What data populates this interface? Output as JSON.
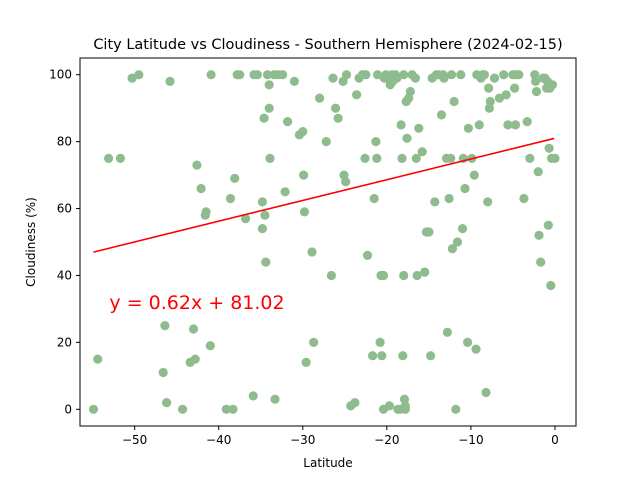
{
  "chart_data": {
    "type": "scatter",
    "title": "City Latitude vs Cloudiness - Southern Hemisphere (2024-02-15)",
    "xlabel": "Latitude",
    "ylabel": "Cloudiness (%)",
    "xlim": [
      -56.5,
      2.5
    ],
    "ylim": [
      -5,
      105
    ],
    "xticks": [
      -50,
      -40,
      -30,
      -20,
      -10,
      0
    ],
    "yticks": [
      0,
      20,
      40,
      60,
      80,
      100
    ],
    "grid": false,
    "marker_color": "#8fbc8f",
    "regression": {
      "slope": 0.62,
      "intercept": 81.02,
      "x_range": [
        -54.9,
        -0.1
      ],
      "color": "#ff0000",
      "equation": "y = 0.62x + 81.02",
      "equation_at": [
        -53,
        30
      ]
    },
    "points": [
      [
        -54.9,
        0
      ],
      [
        -54.4,
        15
      ],
      [
        -53.1,
        75
      ],
      [
        -51.7,
        75
      ],
      [
        -50.3,
        99
      ],
      [
        -49.5,
        100
      ],
      [
        -46.6,
        11
      ],
      [
        -46.4,
        25
      ],
      [
        -46.2,
        2
      ],
      [
        -45.8,
        98
      ],
      [
        -44.3,
        0
      ],
      [
        -43.4,
        14
      ],
      [
        -43,
        24
      ],
      [
        -42.8,
        15
      ],
      [
        -42.6,
        73
      ],
      [
        -42.1,
        66
      ],
      [
        -41.6,
        58
      ],
      [
        -41.5,
        59
      ],
      [
        -41,
        19
      ],
      [
        -40.9,
        100
      ],
      [
        -39.1,
        0
      ],
      [
        -38.6,
        63
      ],
      [
        -38.3,
        0
      ],
      [
        -38.1,
        69
      ],
      [
        -37.8,
        100
      ],
      [
        -37.5,
        100
      ],
      [
        -36.8,
        57
      ],
      [
        -35.9,
        4
      ],
      [
        -35.8,
        100
      ],
      [
        -35.4,
        100
      ],
      [
        -34.8,
        62
      ],
      [
        -34.8,
        54
      ],
      [
        -34.6,
        87
      ],
      [
        -34.5,
        58
      ],
      [
        -34.4,
        44
      ],
      [
        -34.2,
        100
      ],
      [
        -34,
        97
      ],
      [
        -34,
        90
      ],
      [
        -33.9,
        75
      ],
      [
        -33.4,
        100
      ],
      [
        -33.3,
        3
      ],
      [
        -32.9,
        100
      ],
      [
        -32.4,
        100
      ],
      [
        -32.1,
        65
      ],
      [
        -31.8,
        86
      ],
      [
        -31,
        98
      ],
      [
        -30.4,
        82
      ],
      [
        -30,
        83
      ],
      [
        -29.9,
        70
      ],
      [
        -29.8,
        59
      ],
      [
        -29.6,
        14
      ],
      [
        -28.9,
        47
      ],
      [
        -28.7,
        20
      ],
      [
        -28,
        93
      ],
      [
        -27.2,
        80
      ],
      [
        -26.6,
        40
      ],
      [
        -26.4,
        99
      ],
      [
        -26.1,
        90
      ],
      [
        -25.8,
        87
      ],
      [
        -25.2,
        98
      ],
      [
        -25.1,
        70
      ],
      [
        -24.9,
        68
      ],
      [
        -24.8,
        100
      ],
      [
        -24.3,
        1
      ],
      [
        -23.8,
        2
      ],
      [
        -23.6,
        94
      ],
      [
        -23.3,
        99
      ],
      [
        -22.9,
        100
      ],
      [
        -22.6,
        75
      ],
      [
        -22.5,
        100
      ],
      [
        -22.3,
        46
      ],
      [
        -21.7,
        16
      ],
      [
        -21.5,
        63
      ],
      [
        -21.3,
        80
      ],
      [
        -21.2,
        75
      ],
      [
        -21.1,
        100
      ],
      [
        -20.8,
        20
      ],
      [
        -20.7,
        40
      ],
      [
        -20.6,
        16
      ],
      [
        -20.4,
        40
      ],
      [
        -20.4,
        0
      ],
      [
        -20.3,
        99
      ],
      [
        -20.1,
        100
      ],
      [
        -19.9,
        99
      ],
      [
        -19.7,
        1
      ],
      [
        -19.6,
        97
      ],
      [
        -19.4,
        100
      ],
      [
        -19.3,
        98
      ],
      [
        -19,
        100
      ],
      [
        -18.8,
        99
      ],
      [
        -18.7,
        0
      ],
      [
        -18.4,
        0
      ],
      [
        -18.3,
        85
      ],
      [
        -18.2,
        75
      ],
      [
        -18.1,
        16
      ],
      [
        -18,
        100
      ],
      [
        -18,
        40
      ],
      [
        -17.9,
        3
      ],
      [
        -17.8,
        0
      ],
      [
        -17.8,
        1
      ],
      [
        -17.7,
        92
      ],
      [
        -17.6,
        81
      ],
      [
        -17.4,
        93
      ],
      [
        -17.2,
        95
      ],
      [
        -17,
        100
      ],
      [
        -16.6,
        99
      ],
      [
        -16.5,
        75
      ],
      [
        -16.4,
        40
      ],
      [
        -16.2,
        84
      ],
      [
        -15.8,
        77
      ],
      [
        -15.5,
        41
      ],
      [
        -15.3,
        53
      ],
      [
        -15,
        53
      ],
      [
        -14.8,
        16
      ],
      [
        -14.6,
        99
      ],
      [
        -14.3,
        62
      ],
      [
        -14.1,
        100
      ],
      [
        -13.8,
        100
      ],
      [
        -13.5,
        88
      ],
      [
        -13.3,
        100
      ],
      [
        -13.2,
        99
      ],
      [
        -12.9,
        75
      ],
      [
        -12.8,
        23
      ],
      [
        -12.6,
        63
      ],
      [
        -12.4,
        75
      ],
      [
        -12.3,
        100
      ],
      [
        -12.2,
        48
      ],
      [
        -12,
        92
      ],
      [
        -11.8,
        0
      ],
      [
        -11.6,
        50
      ],
      [
        -11.2,
        100
      ],
      [
        -11,
        54
      ],
      [
        -10.9,
        75
      ],
      [
        -10.7,
        66
      ],
      [
        -10.4,
        20
      ],
      [
        -10.3,
        84
      ],
      [
        -9.9,
        75
      ],
      [
        -9.6,
        70
      ],
      [
        -9.4,
        18
      ],
      [
        -9.3,
        100
      ],
      [
        -9,
        85
      ],
      [
        -8.8,
        99
      ],
      [
        -8.6,
        100
      ],
      [
        -8.4,
        100
      ],
      [
        -8.2,
        5
      ],
      [
        -8,
        62
      ],
      [
        -7.9,
        96
      ],
      [
        -7.8,
        90
      ],
      [
        -7.7,
        92
      ],
      [
        -7.2,
        99
      ],
      [
        -6.6,
        93
      ],
      [
        -6.1,
        100
      ],
      [
        -5.8,
        94
      ],
      [
        -5.6,
        85
      ],
      [
        -5,
        100
      ],
      [
        -4.8,
        96
      ],
      [
        -4.7,
        85
      ],
      [
        -4.6,
        100
      ],
      [
        -4.3,
        100
      ],
      [
        -3.7,
        63
      ],
      [
        -3.3,
        86
      ],
      [
        -3,
        75
      ],
      [
        -2.4,
        100
      ],
      [
        -2.2,
        95
      ],
      [
        -2,
        71
      ],
      [
        -1.9,
        52
      ],
      [
        -1.7,
        44
      ],
      [
        -1.4,
        99
      ],
      [
        -1,
        96
      ],
      [
        -0.8,
        55
      ],
      [
        -0.7,
        78
      ],
      [
        -0.7,
        97
      ],
      [
        -0.6,
        96
      ],
      [
        -0.5,
        37
      ],
      [
        -0.4,
        75
      ],
      [
        0,
        75
      ],
      [
        -1.2,
        99
      ],
      [
        -0.9,
        98
      ],
      [
        -0.3,
        97
      ],
      [
        -2.3,
        98
      ]
    ]
  }
}
